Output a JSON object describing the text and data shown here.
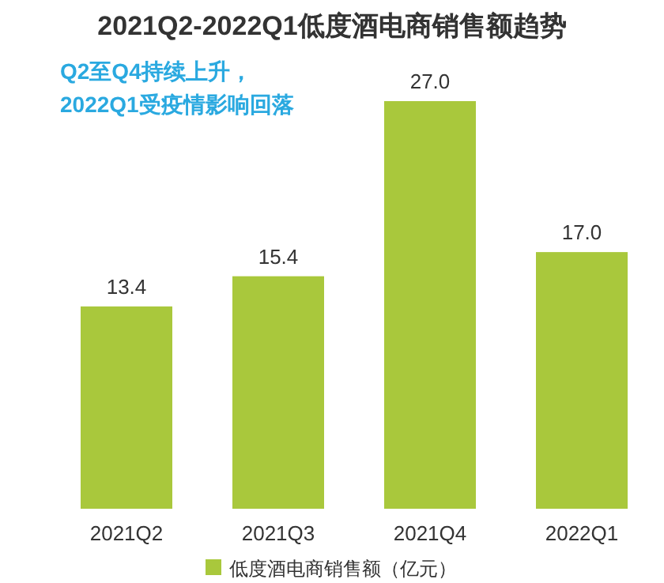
{
  "chart_data": {
    "type": "bar",
    "title": "2021Q2-2022Q1低度酒电商销售额趋势",
    "annotations": [
      "Q2至Q4持续上升，",
      "2022Q1受疫情影响回落"
    ],
    "categories": [
      "2021Q2",
      "2021Q3",
      "2021Q4",
      "2022Q1"
    ],
    "series": [
      {
        "name": "低度酒电商销售额（亿元）",
        "color": "#a9c83c",
        "values": [
          13.4,
          15.4,
          27.0,
          17.0
        ],
        "value_labels": [
          "13.4",
          "15.4",
          "27.0",
          "17.0"
        ]
      }
    ],
    "legend": "bottom",
    "grid": false
  }
}
